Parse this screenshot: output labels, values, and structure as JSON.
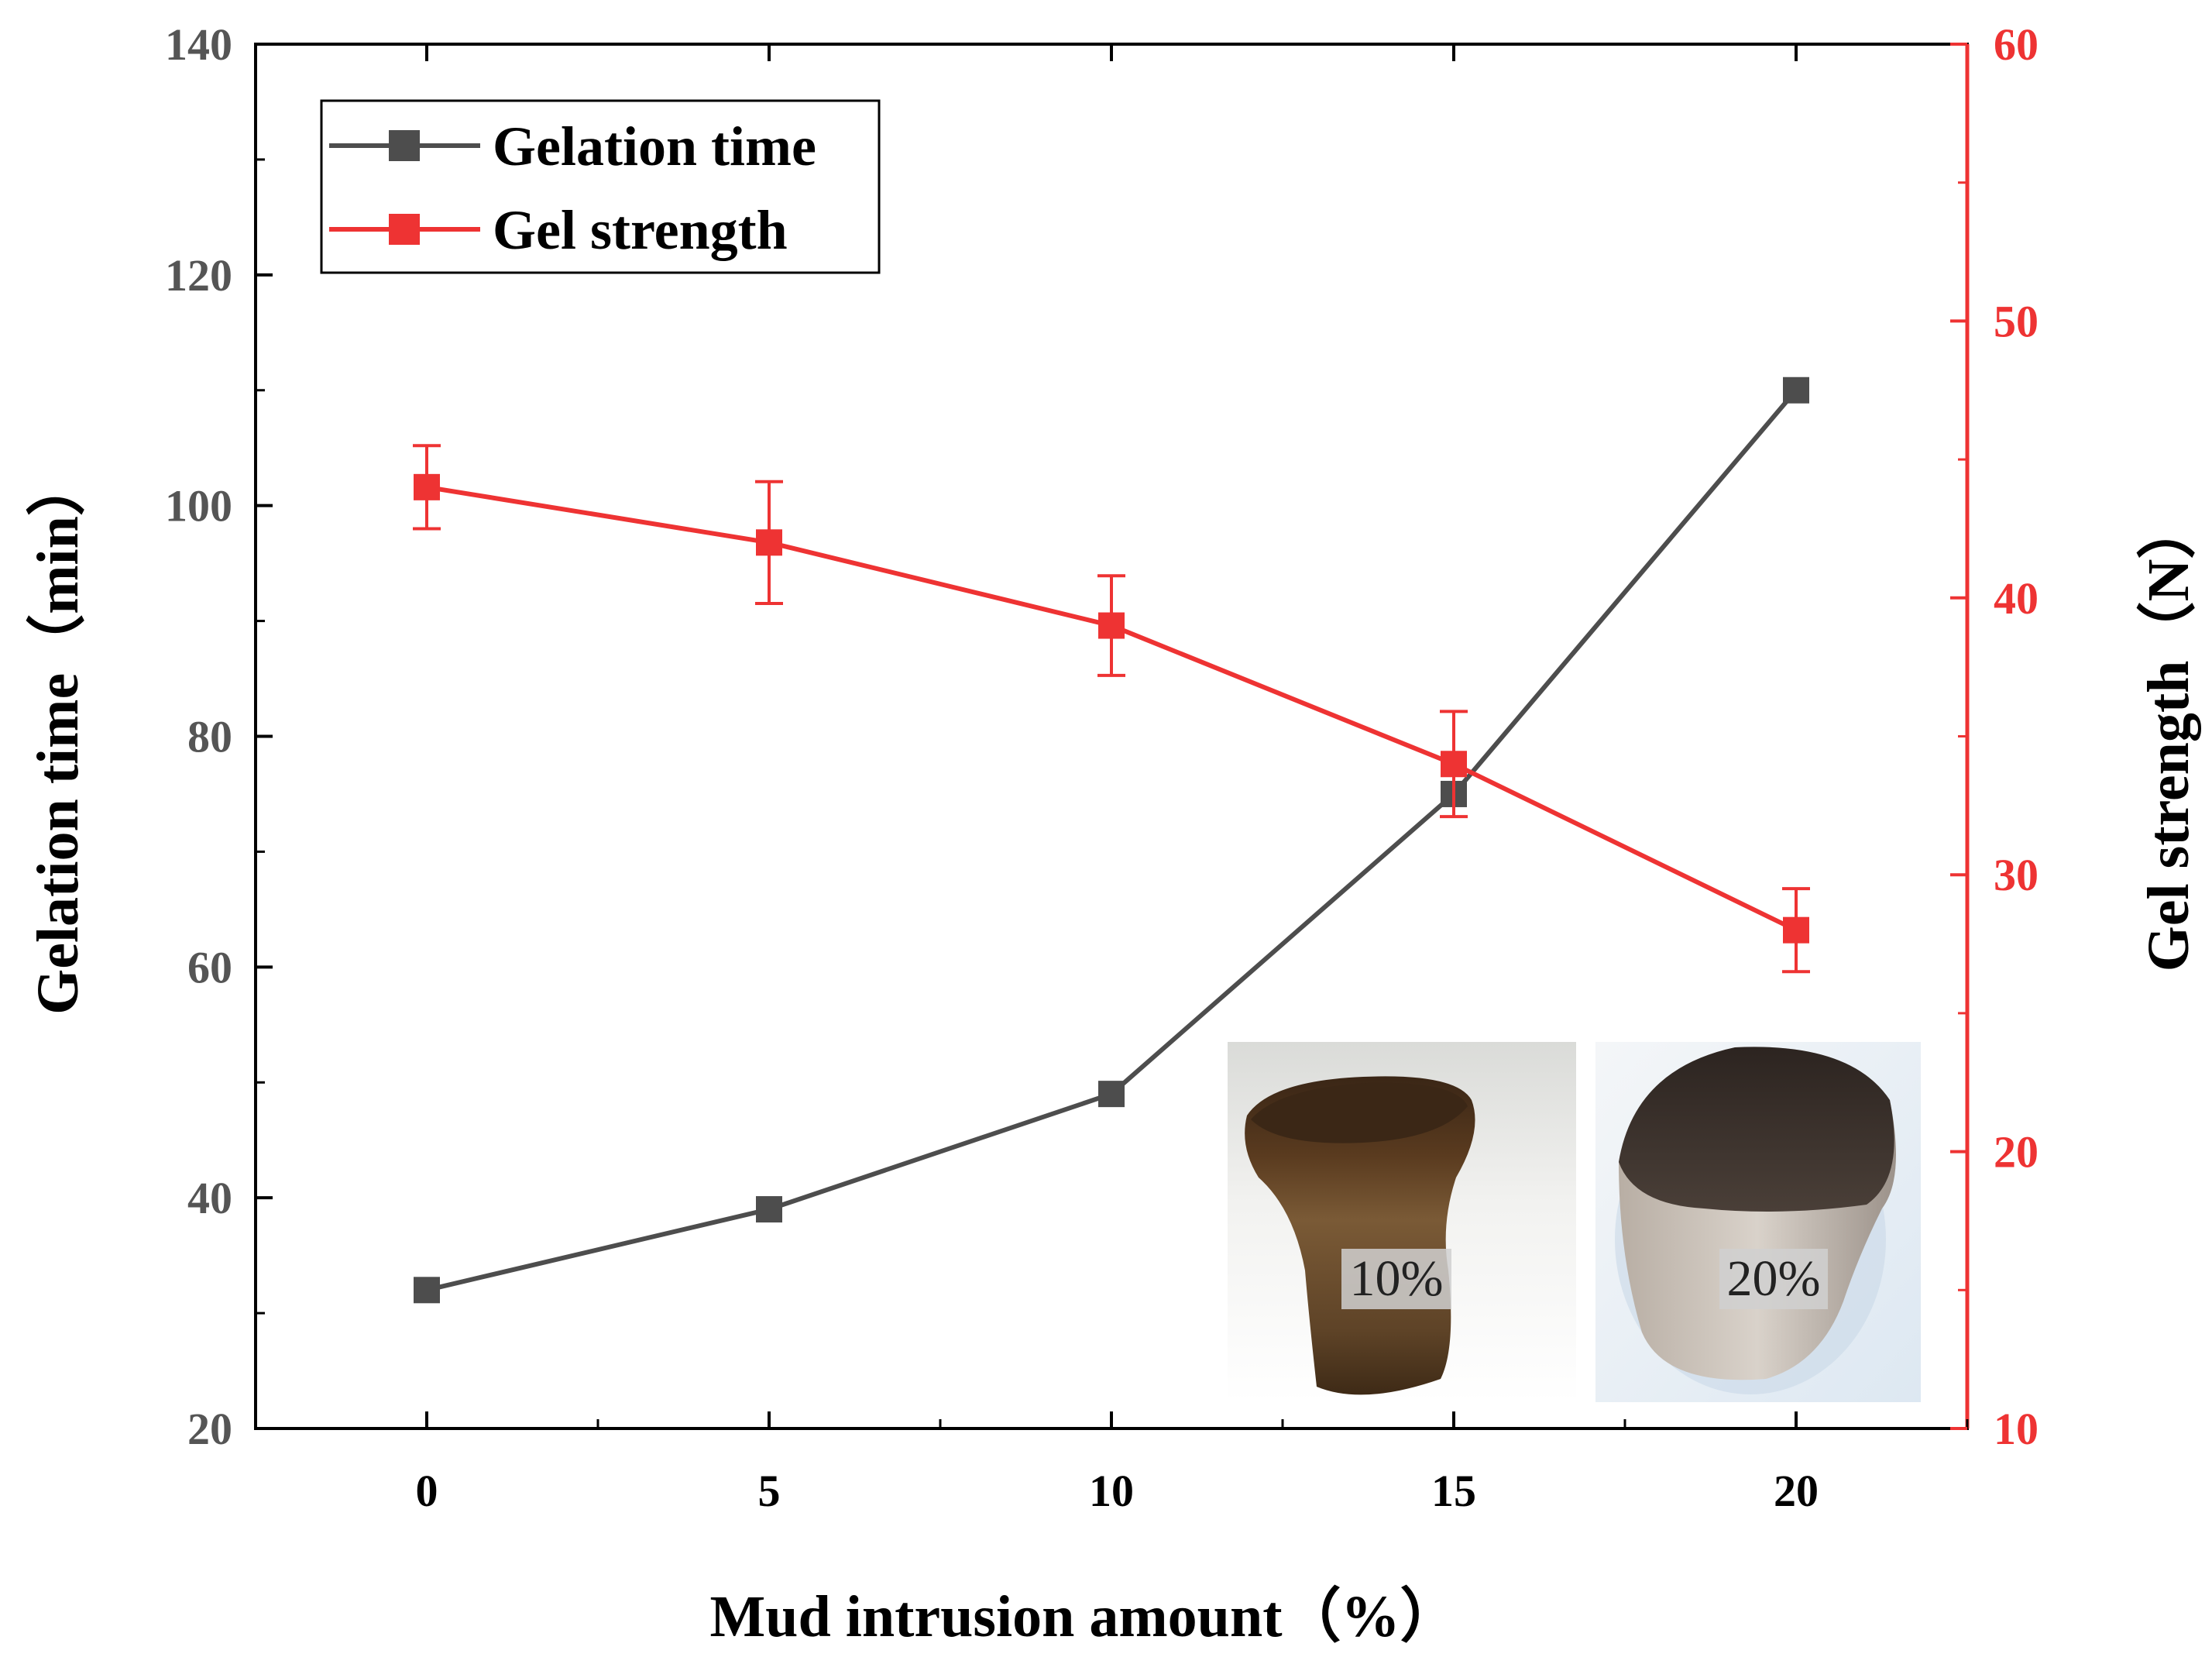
{
  "chart_data": {
    "type": "line",
    "x": [
      0,
      5,
      10,
      15,
      20
    ],
    "xlabel": "Mud intrusion amount（%）",
    "xlim": [
      -2.5,
      22.5
    ],
    "xticks": [
      "0",
      "5",
      "10",
      "15",
      "20"
    ],
    "y_left": {
      "label": "Gelation time（min）",
      "lim": [
        20,
        140
      ],
      "ticks": [
        "20",
        "40",
        "60",
        "80",
        "100",
        "120",
        "140"
      ]
    },
    "y_right": {
      "label": "Gel strength（N）",
      "lim": [
        10,
        60
      ],
      "ticks": [
        "10",
        "20",
        "30",
        "40",
        "50",
        "60"
      ]
    },
    "series": [
      {
        "name": "Gelation time",
        "axis": "left",
        "color": "#4d4d4d",
        "values": [
          32,
          39,
          49,
          75,
          110
        ]
      },
      {
        "name": "Gel strength",
        "axis": "right",
        "color": "#ee3333",
        "values": [
          44,
          42,
          39,
          34,
          28
        ],
        "errors": [
          1.5,
          2.2,
          1.8,
          1.9,
          1.5
        ]
      }
    ],
    "legend": {
      "position": "top-left"
    },
    "insets": [
      {
        "label": "10%",
        "description-icon": "gel-sample-photo"
      },
      {
        "label": "20%",
        "description-icon": "gel-sample-photo"
      }
    ]
  }
}
